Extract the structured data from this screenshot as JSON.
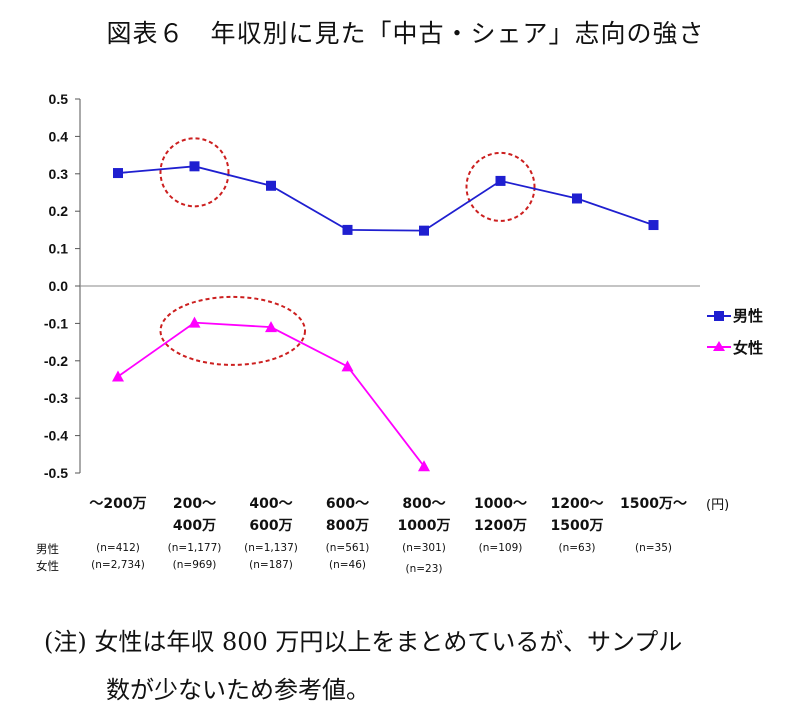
{
  "title": "図表６　年収別に見た「中古・シェア」志向の強さ",
  "note": {
    "line1": "(注) 女性は年収 800 万円以上をまとめているが、サンプル",
    "line2": "数が少ないため参考値。"
  },
  "row_labels": {
    "male": "男性",
    "female": "女性"
  },
  "colors": {
    "male": "#1f1fd0",
    "female": "#ff00ff",
    "highlight": "#cc1f1f"
  },
  "chart_data": {
    "type": "line",
    "title": "図表６　年収別に見た「中古・シェア」志向の強さ",
    "xlabel": "",
    "unit_label": "(円)",
    "ylabel": "",
    "ylim": [
      -0.5,
      0.5
    ],
    "yticks": [
      "0.5",
      "0.4",
      "0.3",
      "0.2",
      "0.1",
      "0.0",
      "-0.1",
      "-0.2",
      "-0.3",
      "-0.4",
      "-0.5"
    ],
    "ytick_values": [
      0.5,
      0.4,
      0.3,
      0.2,
      0.1,
      0.0,
      -0.1,
      -0.2,
      -0.3,
      -0.4,
      -0.5
    ],
    "categories": [
      [
        "～200万"
      ],
      [
        "200～",
        "400万"
      ],
      [
        "400～",
        "600万"
      ],
      [
        "600～",
        "800万"
      ],
      [
        "800～",
        "1000万"
      ],
      [
        "1000～",
        "1200万"
      ],
      [
        "1200～",
        "1500万"
      ],
      [
        "1500万～"
      ]
    ],
    "series": [
      {
        "name": "男性",
        "marker": "square",
        "color": "#1f1fd0",
        "values": [
          0.302,
          0.32,
          0.268,
          0.15,
          0.148,
          0.281,
          0.234,
          0.163
        ]
      },
      {
        "name": "女性",
        "marker": "triangle",
        "color": "#ff00ff",
        "values": [
          -0.242,
          -0.098,
          -0.11,
          -0.215,
          -0.482,
          null,
          null,
          null
        ]
      }
    ],
    "sample_sizes": {
      "male": [
        "(n=412)",
        "(n=1,177)",
        "(n=1,137)",
        "(n=561)",
        "(n=301)",
        "(n=109)",
        "(n=63)",
        "(n=35)"
      ],
      "female": [
        "(n=2,734)",
        "(n=969)",
        "(n=187)",
        "(n=46)",
        "(n=23)",
        "",
        "",
        ""
      ]
    },
    "highlights": [
      {
        "series": "男性",
        "indices": [
          1
        ]
      },
      {
        "series": "女性",
        "indices": [
          1,
          2
        ]
      },
      {
        "series": "男性",
        "indices": [
          5
        ]
      }
    ],
    "legend_position": "right",
    "grid": false
  }
}
